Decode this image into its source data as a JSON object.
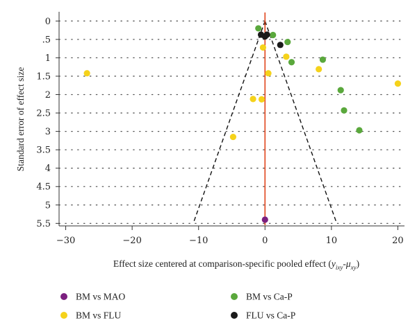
{
  "chart_data": {
    "type": "scatter",
    "title": "",
    "xlabel": {
      "main": "Effect size centered at comparison-specific pooled effect (",
      "y": "y",
      "y_sub": "ixy",
      "minus": "-",
      "mu": "μ",
      "mu_sub": "xy",
      "close": ")"
    },
    "ylabel": "Standard error of effect size",
    "xlim": [
      -31,
      21
    ],
    "ylim": [
      5.55,
      -0.1
    ],
    "y_reversed": true,
    "x_ticks": [
      -30,
      -20,
      -10,
      0,
      10,
      20
    ],
    "x_tick_labels": [
      "−30",
      "−20",
      "−10",
      "0",
      "10",
      "20"
    ],
    "y_ticks": [
      0,
      0.5,
      1,
      1.5,
      2,
      2.5,
      3,
      3.5,
      4,
      4.5,
      5,
      5.5
    ],
    "y_tick_labels": [
      "0",
      ".5",
      "1",
      "1.5",
      "2",
      "2.5",
      "3",
      "3.5",
      "4",
      "4.5",
      "5",
      "5.5"
    ],
    "grid": "horizontal-dotted",
    "reference_line": {
      "x": 0,
      "color": "#e0441c"
    },
    "funnel": {
      "apex_x": 0,
      "apex_y": 0,
      "bottom_y": 5.5,
      "bottom_left_x": -10.8,
      "bottom_right_x": 10.8
    },
    "legend_placement": "bottom",
    "series": [
      {
        "name": "BM vs MAO",
        "color": "#7b1f7f",
        "points": [
          [
            0,
            5.4
          ]
        ]
      },
      {
        "name": "BM vs Ca-P",
        "color": "#5aa83c",
        "points": [
          [
            -1.0,
            0.2
          ],
          [
            1.2,
            0.38
          ],
          [
            3.4,
            0.57
          ],
          [
            4.0,
            1.12
          ],
          [
            8.7,
            1.05
          ],
          [
            11.4,
            1.88
          ],
          [
            11.9,
            2.43
          ],
          [
            14.2,
            2.97
          ]
        ]
      },
      {
        "name": "BM vs FLU",
        "color": "#f5d21a",
        "points": [
          [
            -26.8,
            1.42
          ],
          [
            -0.3,
            0.72
          ],
          [
            0.5,
            1.42
          ],
          [
            3.2,
            0.97
          ],
          [
            8.1,
            1.31
          ],
          [
            20.0,
            1.7
          ],
          [
            -1.8,
            2.12
          ],
          [
            -0.5,
            2.13
          ],
          [
            -4.8,
            3.15
          ]
        ]
      },
      {
        "name": "FLU vs Ca-P",
        "color": "#1a1a1a",
        "points": [
          [
            -0.6,
            0.37
          ],
          [
            0.0,
            0.42
          ],
          [
            0.3,
            0.37
          ],
          [
            2.3,
            0.65
          ]
        ]
      }
    ]
  }
}
